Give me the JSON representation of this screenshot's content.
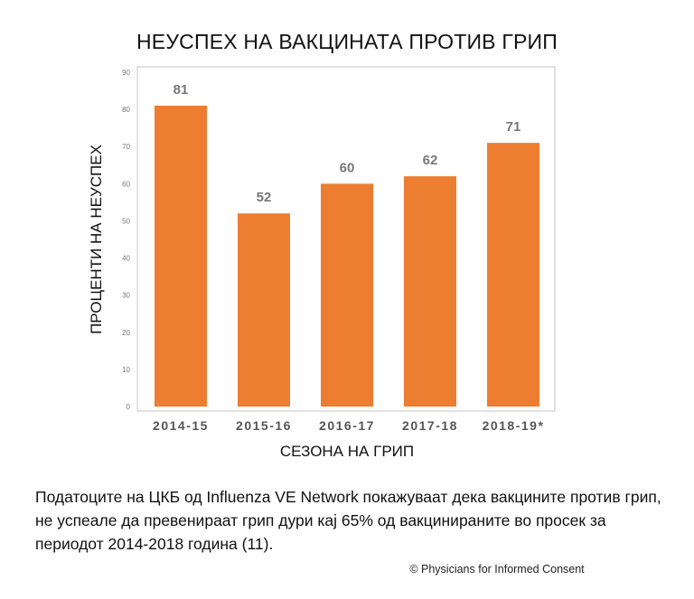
{
  "chart_data": {
    "type": "bar",
    "title": "НЕУСПЕХ НА ВАКЦИНАТА ПРОТИВ ГРИП",
    "xlabel": "СЕЗОНА НА ГРИП",
    "ylabel": "ПРОЦЕНТИ НА НЕУСПЕХ",
    "categories": [
      "2014-15",
      "2015-16",
      "2016-17",
      "2017-18",
      "2018-19*"
    ],
    "values": [
      81,
      52,
      60,
      62,
      71
    ],
    "ylim": [
      0,
      90
    ],
    "yticks": [
      0,
      10,
      20,
      30,
      40,
      50,
      60,
      70,
      80,
      90
    ],
    "bar_color": "#ED7D31",
    "grid": false
  },
  "caption": "Податоците на ЦКБ од Influenza VE Network покажуваат дека вакцините против грип, не успеале да превенираат грип дури кај 65% од вакцинираните во просек за периодот 2014-2018 година (11).",
  "copyright": "© Physicians for Informed Consent"
}
